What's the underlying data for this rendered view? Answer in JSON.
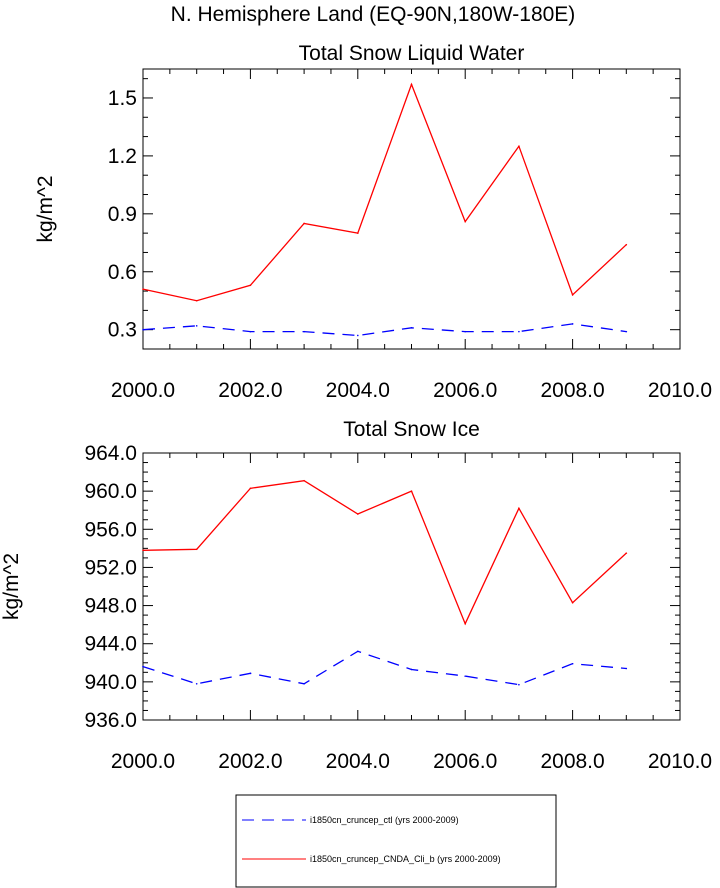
{
  "page": {
    "title": "N. Hemisphere Land (EQ-90N,180W-180E)"
  },
  "legend": {
    "entries": [
      {
        "label": "i1850cn_cruncep_ctl (yrs 2000-2009)",
        "color": "#0000ff",
        "style": "dashed"
      },
      {
        "label": "i1850cn_cruncep_CNDA_Cli_b (yrs 2000-2009)",
        "color": "#ff0000",
        "style": "solid"
      }
    ]
  },
  "chart_data": [
    {
      "type": "line",
      "title": "Total Snow Liquid Water",
      "xlabel": "",
      "ylabel": "kg/m^2",
      "xlim": [
        2000,
        2010
      ],
      "ylim": [
        0.2,
        1.65
      ],
      "xticks": [
        "2000.0",
        "2002.0",
        "2004.0",
        "2006.0",
        "2008.0",
        "2010.0"
      ],
      "yticks": [
        "0.3",
        "0.6",
        "0.9",
        "1.2",
        "1.5"
      ],
      "grid": false,
      "x": [
        2000,
        2001,
        2002,
        2003,
        2004,
        2005,
        2006,
        2007,
        2008,
        2009
      ],
      "series": [
        {
          "name": "i1850cn_cruncep_ctl (yrs 2000-2009)",
          "color": "#0000ff",
          "style": "dashed",
          "values": [
            0.3,
            0.32,
            0.29,
            0.29,
            0.27,
            0.31,
            0.29,
            0.29,
            0.33,
            0.29
          ]
        },
        {
          "name": "i1850cn_cruncep_CNDA_Cli_b (yrs 2000-2009)",
          "color": "#ff0000",
          "style": "solid",
          "values": [
            0.51,
            0.45,
            0.53,
            0.85,
            0.8,
            1.57,
            0.86,
            1.25,
            0.48,
            0.74
          ]
        }
      ]
    },
    {
      "type": "line",
      "title": "Total Snow Ice",
      "xlabel": "",
      "ylabel": "kg/m^2",
      "xlim": [
        2000,
        2010
      ],
      "ylim": [
        936,
        964
      ],
      "xticks": [
        "2000.0",
        "2002.0",
        "2004.0",
        "2006.0",
        "2008.0",
        "2010.0"
      ],
      "yticks": [
        "936.0",
        "940.0",
        "944.0",
        "948.0",
        "952.0",
        "956.0",
        "960.0",
        "964.0"
      ],
      "grid": false,
      "x": [
        2000,
        2001,
        2002,
        2003,
        2004,
        2005,
        2006,
        2007,
        2008,
        2009
      ],
      "series": [
        {
          "name": "i1850cn_cruncep_ctl (yrs 2000-2009)",
          "color": "#0000ff",
          "style": "dashed",
          "values": [
            941.6,
            939.8,
            940.9,
            939.8,
            943.2,
            941.3,
            940.6,
            939.7,
            941.9,
            941.4
          ]
        },
        {
          "name": "i1850cn_cruncep_CNDA_Cli_b (yrs 2000-2009)",
          "color": "#ff0000",
          "style": "solid",
          "values": [
            953.8,
            953.9,
            960.3,
            961.1,
            957.6,
            960.0,
            946.1,
            958.2,
            948.3,
            953.5
          ]
        }
      ]
    }
  ]
}
